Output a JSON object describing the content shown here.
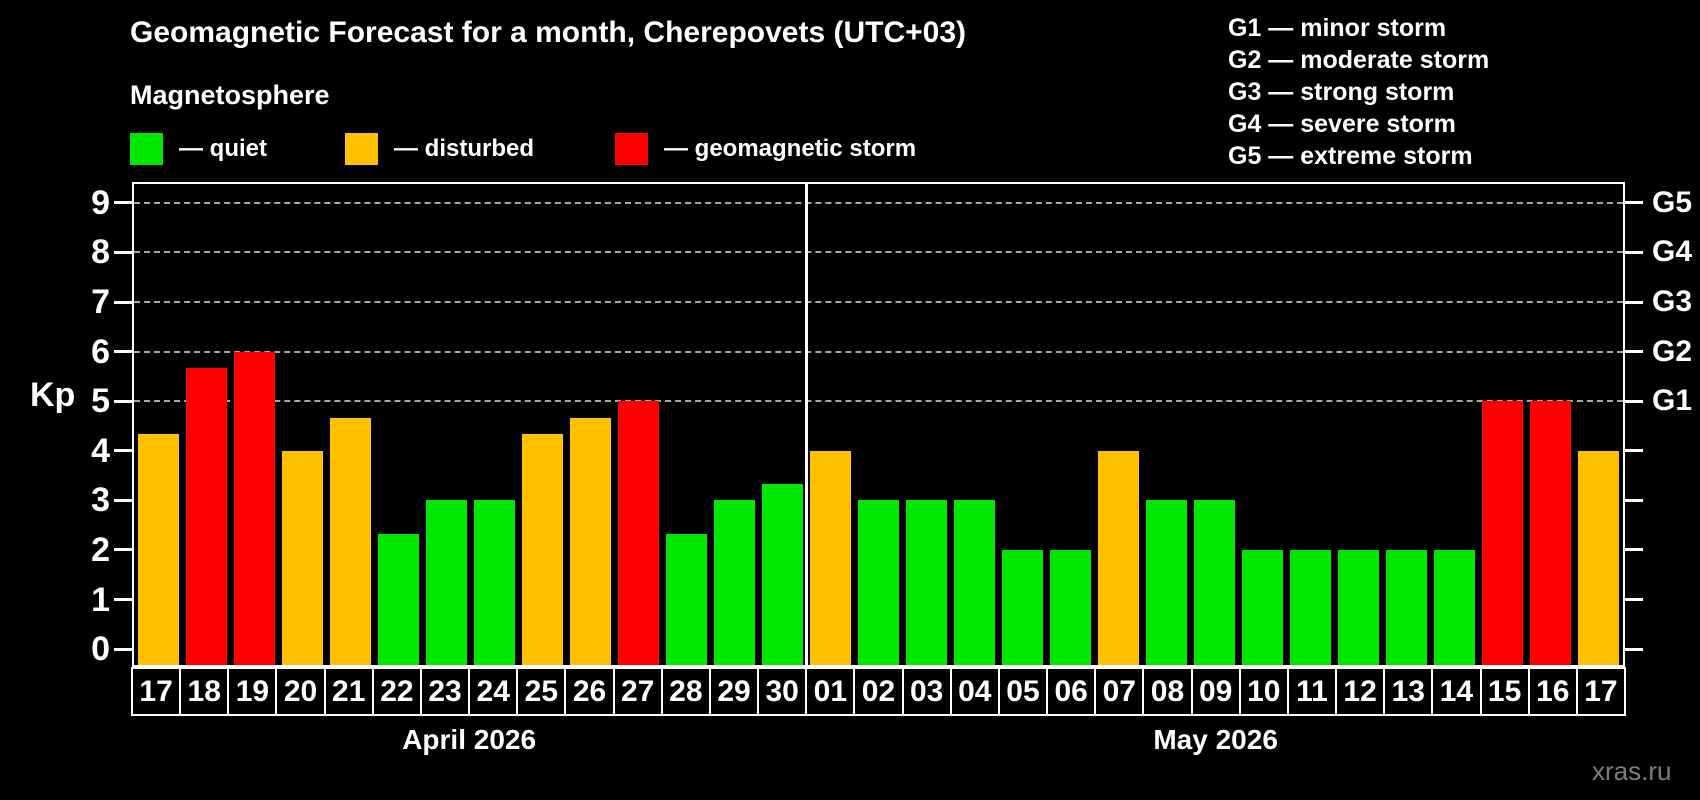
{
  "title": "Geomagnetic Forecast for a month, Cherepovets (UTC+03)",
  "subtitle": "Magnetosphere",
  "legend": [
    {
      "key": "quiet",
      "label": "— quiet",
      "color": "#00E800"
    },
    {
      "key": "disturbed",
      "label": "— disturbed",
      "color": "#FFC000"
    },
    {
      "key": "storm",
      "label": "— geomagnetic storm",
      "color": "#FF0000"
    }
  ],
  "storm_scale_legend": [
    "G1 — minor storm",
    "G2 — moderate storm",
    "G3 — strong storm",
    "G4 — severe storm",
    "G5 — extreme storm"
  ],
  "y_axis": {
    "label": "Kp",
    "ticks": [
      0,
      1,
      2,
      3,
      4,
      5,
      6,
      7,
      8,
      9
    ]
  },
  "right_axis": {
    "labels": [
      "G1",
      "G2",
      "G3",
      "G4",
      "G5"
    ],
    "levels": [
      5,
      6,
      7,
      8,
      9
    ]
  },
  "watermark": "xras.ru",
  "colors": {
    "quiet": "#00E800",
    "disturbed": "#FFC000",
    "storm": "#FF0000",
    "grid": "#a8a8a8",
    "frame": "#ffffff",
    "background": "#000000"
  },
  "chart_data": {
    "type": "bar",
    "title": "Geomagnetic Forecast for a month, Cherepovets (UTC+03)",
    "ylabel": "Kp",
    "ylim": [
      -0.32,
      9.38
    ],
    "grid_levels": [
      5,
      6,
      7,
      8,
      9
    ],
    "legend_position": "top",
    "groups": [
      {
        "month": "April 2026",
        "days": [
          "17",
          "18",
          "19",
          "20",
          "21",
          "22",
          "23",
          "24",
          "25",
          "26",
          "27",
          "28",
          "29",
          "30"
        ],
        "values": [
          4.33,
          5.67,
          6.0,
          4.0,
          4.67,
          2.33,
          3.0,
          3.0,
          4.33,
          4.67,
          5.0,
          2.33,
          3.0,
          3.33
        ],
        "levels": [
          "disturbed",
          "storm",
          "storm",
          "disturbed",
          "disturbed",
          "quiet",
          "quiet",
          "quiet",
          "disturbed",
          "disturbed",
          "storm",
          "quiet",
          "quiet",
          "quiet"
        ]
      },
      {
        "month": "May 2026",
        "days": [
          "01",
          "02",
          "03",
          "04",
          "05",
          "06",
          "07",
          "08",
          "09",
          "10",
          "11",
          "12",
          "13",
          "14",
          "15",
          "16",
          "17"
        ],
        "values": [
          4.0,
          3.0,
          3.0,
          3.0,
          2.0,
          2.0,
          4.0,
          3.0,
          3.0,
          2.0,
          2.0,
          2.0,
          2.0,
          2.0,
          5.0,
          5.0,
          4.0
        ],
        "levels": [
          "disturbed",
          "quiet",
          "quiet",
          "quiet",
          "quiet",
          "quiet",
          "disturbed",
          "quiet",
          "quiet",
          "quiet",
          "quiet",
          "quiet",
          "quiet",
          "quiet",
          "storm",
          "storm",
          "disturbed"
        ]
      }
    ]
  }
}
